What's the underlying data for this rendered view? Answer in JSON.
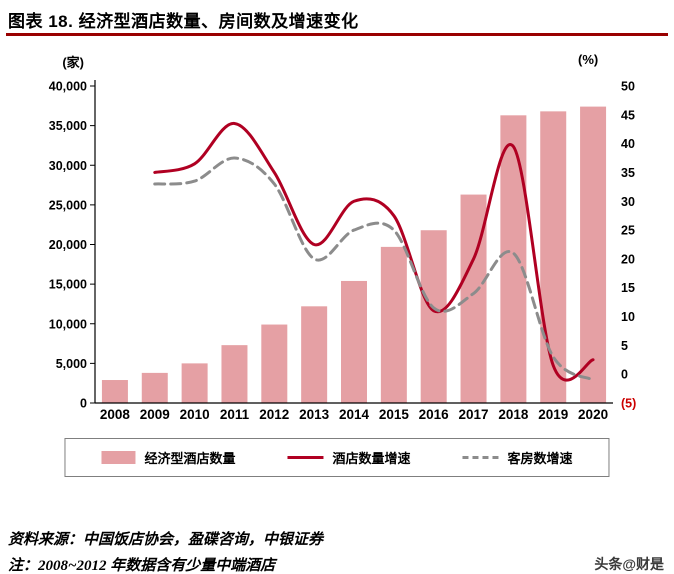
{
  "title": "图表 18. 经济型酒店数量、房间数及增速变化",
  "left_unit": "(家)",
  "right_unit": "(%)",
  "legend": {
    "bar_label": "经济型酒店数量",
    "line_solid_label": "酒店数量增速",
    "line_dashed_label": "客房数增速"
  },
  "footer": {
    "source": "资料来源：中国饭店协会，盈碟咨询，中银证券",
    "note": "注：2008~2012 年数据含有少量中端酒店"
  },
  "watermark": "头条@财是",
  "colors": {
    "bar": "#e5a0a4",
    "line_solid": "#b00022",
    "line_dashed": "#8c8c8c",
    "accent": "#990000",
    "axis": "#000000",
    "negative_tick": "#cc0000"
  },
  "chart_data": {
    "type": "combo-bar-line",
    "title": "经济型酒店数量、房间数及增速变化",
    "categories": [
      "2008",
      "2009",
      "2010",
      "2011",
      "2012",
      "2013",
      "2014",
      "2015",
      "2016",
      "2017",
      "2018",
      "2019",
      "2020"
    ],
    "bar_series": {
      "name": "经济型酒店数量",
      "axis": "left",
      "values": [
        2900,
        3800,
        5000,
        7300,
        9900,
        12200,
        15400,
        19700,
        21800,
        26300,
        36300,
        36800,
        37400
      ]
    },
    "line_series": [
      {
        "name": "酒店数量增速",
        "axis": "right",
        "style": "solid",
        "start_index": 1,
        "values": [
          35,
          36.5,
          43.5,
          35,
          22.5,
          30,
          27.5,
          11,
          20,
          39.5,
          1.5,
          2.5
        ]
      },
      {
        "name": "客房数增速",
        "axis": "right",
        "style": "dashed",
        "start_index": 1,
        "values": [
          33,
          33.5,
          37.5,
          33,
          20,
          25,
          25,
          11.5,
          14,
          21,
          3,
          -1
        ]
      }
    ],
    "left_axis": {
      "unit": "(家)",
      "min": 0,
      "max": 40000,
      "step": 5000
    },
    "right_axis": {
      "unit": "(%)",
      "min": -5,
      "max": 50,
      "step": 5
    },
    "grid": false,
    "legend_position": "bottom"
  }
}
